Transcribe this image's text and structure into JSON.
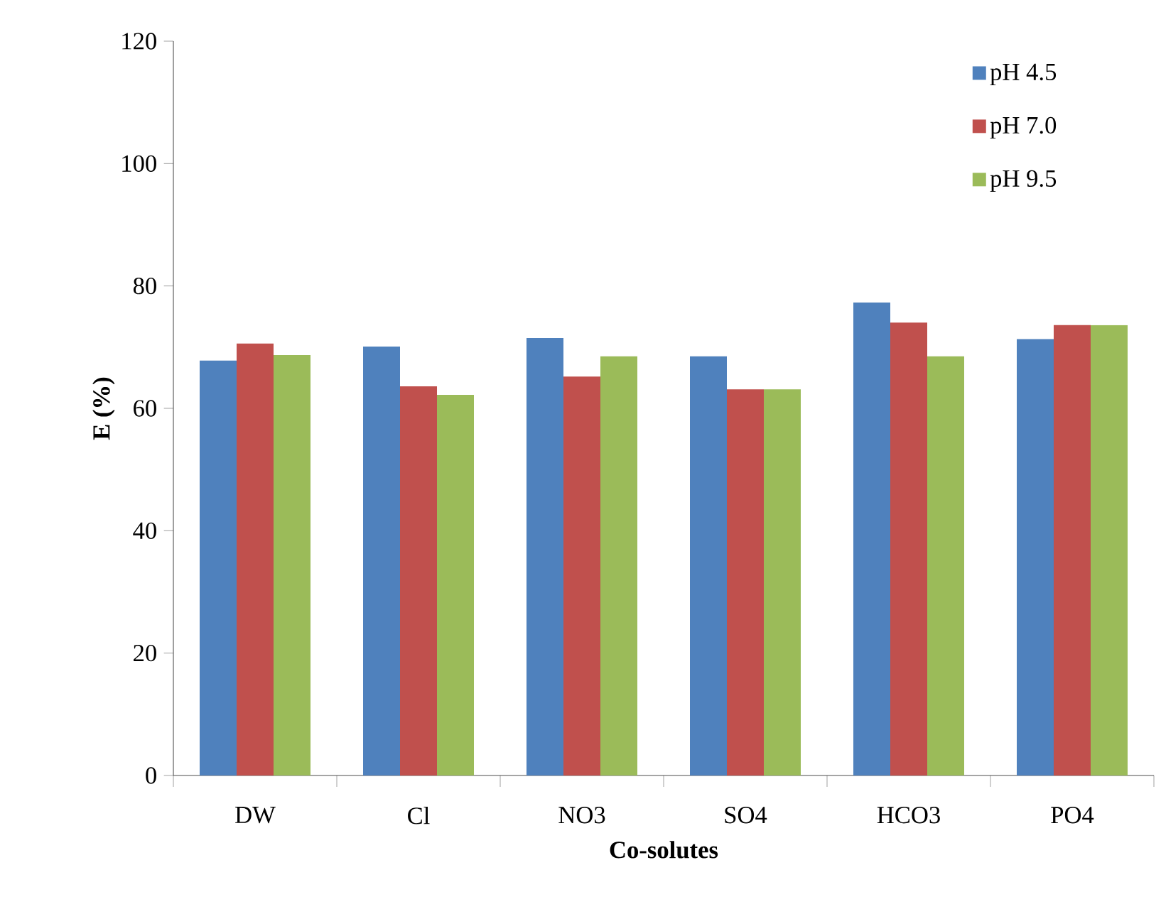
{
  "chart_data": {
    "type": "bar",
    "xlabel": "Co-solutes",
    "ylabel": "E (%)",
    "categories": [
      "DW",
      "Cl",
      "NO3",
      "SO4",
      "HCO3",
      "PO4"
    ],
    "series": [
      {
        "name": "pH 4.5",
        "color": "#4f81bd",
        "values": [
          67.8,
          70.1,
          71.5,
          68.5,
          77.3,
          71.3
        ]
      },
      {
        "name": "pH 7.0",
        "color": "#c0504d",
        "values": [
          70.6,
          63.6,
          65.2,
          63.1,
          74.0,
          73.6
        ]
      },
      {
        "name": "pH 9.5",
        "color": "#9bbb59",
        "values": [
          68.7,
          62.2,
          68.5,
          63.1,
          68.5,
          73.6
        ]
      }
    ],
    "ylim": [
      0,
      120
    ],
    "yticks": [
      0,
      20,
      40,
      60,
      80,
      100,
      120
    ],
    "legend": "top right",
    "grid": false
  }
}
